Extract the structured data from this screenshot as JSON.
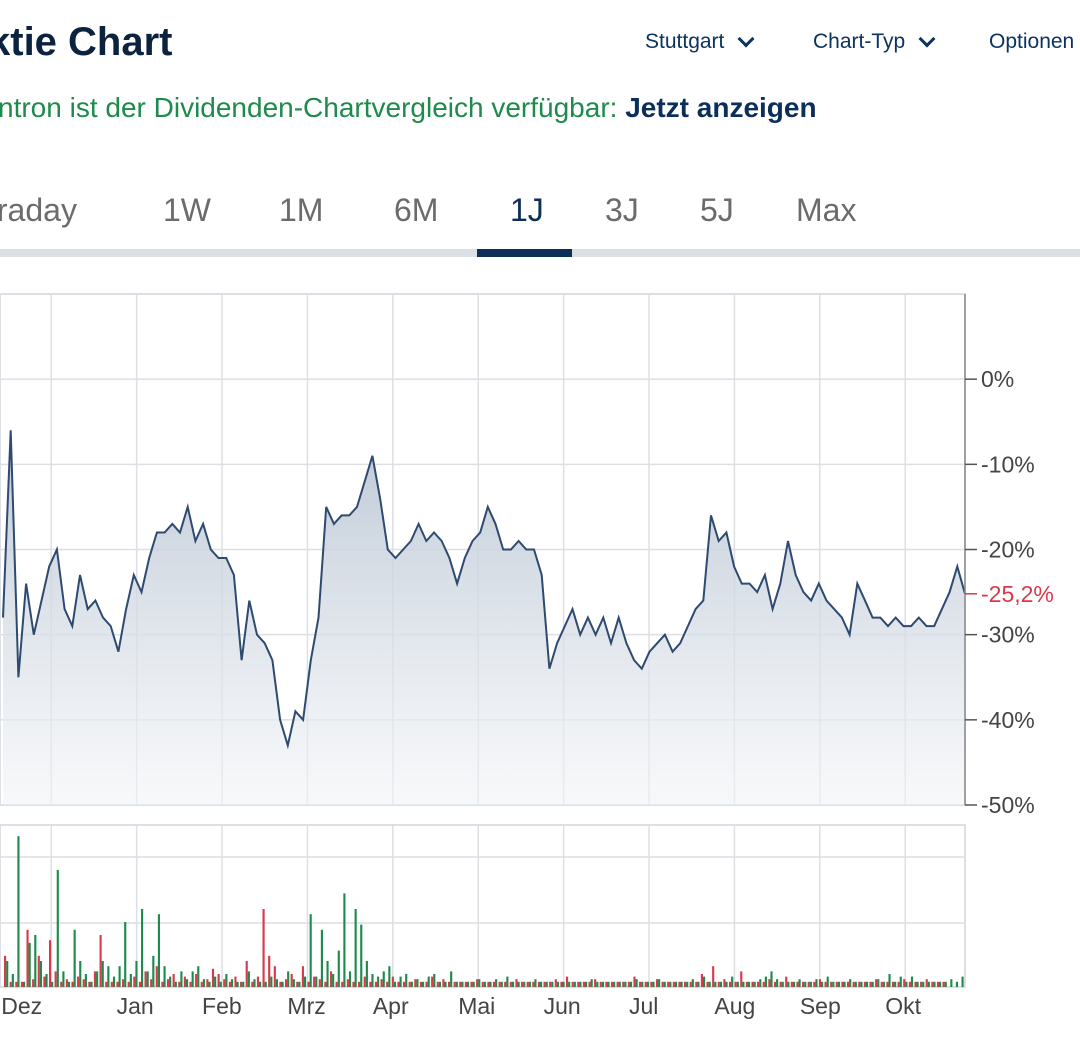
{
  "header": {
    "title": "ktie Chart",
    "menus": [
      {
        "label": "Stuttgart",
        "icon": "chevron-down-icon"
      },
      {
        "label": "Chart-Typ",
        "icon": "chevron-down-icon"
      },
      {
        "label": "Optionen"
      }
    ]
  },
  "notice": {
    "text": "ntron ist der Dividenden-Chartvergleich verfügbar: ",
    "link": "Jetzt anzeigen"
  },
  "tabs": [
    {
      "label": "traday"
    },
    {
      "label": "1W"
    },
    {
      "label": "1M"
    },
    {
      "label": "6M"
    },
    {
      "label": "1J",
      "active": true
    },
    {
      "label": "3J"
    },
    {
      "label": "5J"
    },
    {
      "label": "Max"
    }
  ],
  "colors": {
    "line": "#2e4a70",
    "fill_top": "#b9c5d3",
    "up": "#1e8a4c",
    "down": "#d93a4a",
    "grid": "#dcdfe3",
    "accent": "#0c2f5a"
  },
  "chart_data": [
    {
      "type": "area",
      "title": "",
      "xlabel": "",
      "ylabel": "",
      "ylim": [
        -50,
        10
      ],
      "y_ticks": [
        0,
        -10,
        -20,
        -30,
        -40,
        -50
      ],
      "y_tick_labels": [
        "0%",
        "-10%",
        "-20%",
        "-30%",
        "-40%",
        "-50%"
      ],
      "x_tick_labels": [
        "Dez",
        "Jan",
        "Feb",
        "Mrz",
        "Apr",
        "Mai",
        "Jun",
        "Jul",
        "Aug",
        "Sep",
        "Okt"
      ],
      "x_ticks": [
        0.6,
        1.6,
        2.6,
        3.6,
        4.6,
        5.6,
        6.6,
        7.6,
        8.6,
        9.6,
        10.6
      ],
      "xlim": [
        0,
        11.3
      ],
      "current_value": -25.2,
      "current_label": "-25,2%",
      "grid": true,
      "values": [
        -28,
        -6,
        -35,
        -24,
        -30,
        -26,
        -22,
        -20,
        -27,
        -29,
        -23,
        -27,
        -26,
        -28,
        -29,
        -32,
        -27,
        -23,
        -25,
        -21,
        -18,
        -18,
        -17,
        -18,
        -15,
        -19,
        -17,
        -20,
        -21,
        -21,
        -23,
        -33,
        -26,
        -30,
        -31,
        -33,
        -40,
        -43,
        -39,
        -40,
        -33,
        -28,
        -15,
        -17,
        -16,
        -16,
        -15,
        -12,
        -9,
        -14,
        -20,
        -21,
        -20,
        -19,
        -17,
        -19,
        -18,
        -19,
        -21,
        -24,
        -21,
        -19,
        -18,
        -15,
        -17,
        -20,
        -20,
        -19,
        -20,
        -20,
        -23,
        -34,
        -31,
        -29,
        -27,
        -30,
        -28,
        -30,
        -28,
        -31,
        -28,
        -31,
        -33,
        -34,
        -32,
        -31,
        -30,
        -32,
        -31,
        -29,
        -27,
        -26,
        -16,
        -19,
        -18,
        -22,
        -24,
        -24,
        -25,
        -23,
        -27,
        -24,
        -19,
        -23,
        -25,
        -26,
        -24,
        -26,
        -27,
        -28,
        -30,
        -24,
        -26,
        -28,
        -28,
        -29,
        -28,
        -29,
        -29,
        -28,
        -29,
        -29,
        -27,
        -25,
        -22,
        -25.2
      ]
    },
    {
      "type": "bar",
      "title": "",
      "series": [
        {
          "name": "",
          "values": [
            10,
            5,
            58,
            2,
            17,
            20,
            10,
            5,
            2,
            45,
            6,
            2,
            22,
            10,
            5,
            2,
            6,
            10,
            8,
            4,
            8,
            25,
            5,
            10,
            30,
            6,
            12,
            28,
            8,
            4,
            2,
            6,
            3,
            6,
            8,
            3,
            2,
            4,
            2,
            5,
            3,
            2,
            2,
            6,
            3,
            2,
            2,
            4,
            3,
            2,
            6,
            3,
            2,
            4,
            28,
            4,
            22,
            10,
            5,
            14,
            36,
            6,
            30,
            24,
            10,
            5,
            4,
            6,
            8,
            2,
            4,
            5,
            2,
            3,
            2,
            4,
            5,
            2,
            2,
            6,
            2,
            2,
            2,
            2,
            3,
            2,
            2,
            3,
            2,
            4,
            2,
            2,
            2,
            2,
            3,
            2,
            2,
            2,
            2,
            2,
            2,
            2,
            2,
            2,
            3,
            2,
            2,
            2,
            2,
            2,
            2,
            2,
            3,
            2,
            2,
            2,
            3,
            2,
            2,
            2,
            2,
            2,
            3,
            2,
            4,
            2,
            2,
            2,
            2,
            4,
            2,
            2,
            2,
            2,
            3,
            4,
            6,
            3,
            2,
            2,
            2,
            3,
            2,
            2,
            3,
            2,
            4,
            2,
            2,
            2,
            3,
            2,
            2,
            2,
            2,
            3,
            2,
            5,
            2,
            4,
            2,
            4,
            2,
            2,
            2,
            2,
            2,
            2,
            3,
            2,
            4
          ]
        },
        {
          "name": "",
          "values": [
            12,
            2,
            2,
            2,
            22,
            3,
            12,
            4,
            18,
            6,
            2,
            3,
            2,
            4,
            3,
            2,
            6,
            20,
            2,
            2,
            2,
            3,
            2,
            4,
            2,
            6,
            3,
            8,
            2,
            3,
            5,
            2,
            4,
            2,
            5,
            2,
            3,
            7,
            5,
            3,
            2,
            4,
            2,
            10,
            2,
            4,
            30,
            12,
            8,
            2,
            3,
            5,
            2,
            8,
            2,
            4,
            3,
            2,
            6,
            2,
            2,
            3,
            2,
            2,
            4,
            2,
            2,
            3,
            2,
            4,
            2,
            2,
            2,
            3,
            2,
            2,
            4,
            2,
            3,
            2,
            2,
            2,
            2,
            2,
            3,
            2,
            2,
            2,
            2,
            2,
            2,
            3,
            2,
            2,
            2,
            2,
            2,
            2,
            3,
            2,
            4,
            2,
            2,
            2,
            2,
            3,
            2,
            2,
            2,
            2,
            2,
            2,
            4,
            2,
            2,
            2,
            3,
            2,
            2,
            2,
            2,
            2,
            2,
            2,
            5,
            2,
            8,
            2,
            3,
            2,
            2,
            6,
            2,
            2,
            2,
            2,
            3,
            2,
            2,
            4,
            2,
            2,
            2,
            2,
            2,
            3,
            2,
            2,
            2,
            2,
            2,
            2,
            2,
            2,
            2,
            3,
            2,
            2,
            2,
            2,
            3,
            2,
            2,
            2,
            3,
            2,
            2,
            2
          ]
        }
      ]
    }
  ]
}
